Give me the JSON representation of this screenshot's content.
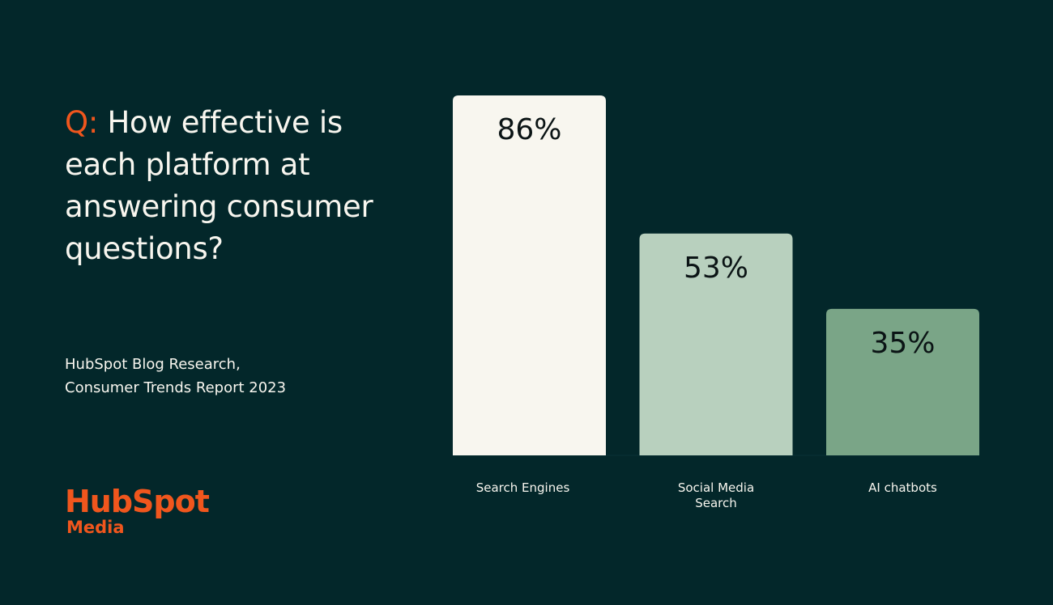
{
  "question": {
    "prefix": "Q:",
    "text": "How effective is each platform at answering consumer questions?"
  },
  "source": {
    "line1": "HubSpot Blog Research,",
    "line2": "Consumer Trends Report 2023"
  },
  "logo": {
    "brand": "HubSpot",
    "sub": "Media"
  },
  "colors": {
    "background": "#03272a",
    "accent": "#f0561d",
    "bars": [
      "#f8f6ef",
      "#b8d0be",
      "#7aa587"
    ]
  },
  "chart_data": {
    "type": "bar",
    "categories": [
      "Search Engines",
      "Social Media Search",
      "AI chatbots"
    ],
    "category_lines": [
      [
        "Search Engines"
      ],
      [
        "Social Media",
        "Search"
      ],
      [
        "AI chatbots"
      ]
    ],
    "values": [
      86,
      53,
      35
    ],
    "value_labels": [
      "86%",
      "53%",
      "35%"
    ],
    "ylim": [
      0,
      86
    ],
    "grid": false,
    "legend": "none"
  }
}
